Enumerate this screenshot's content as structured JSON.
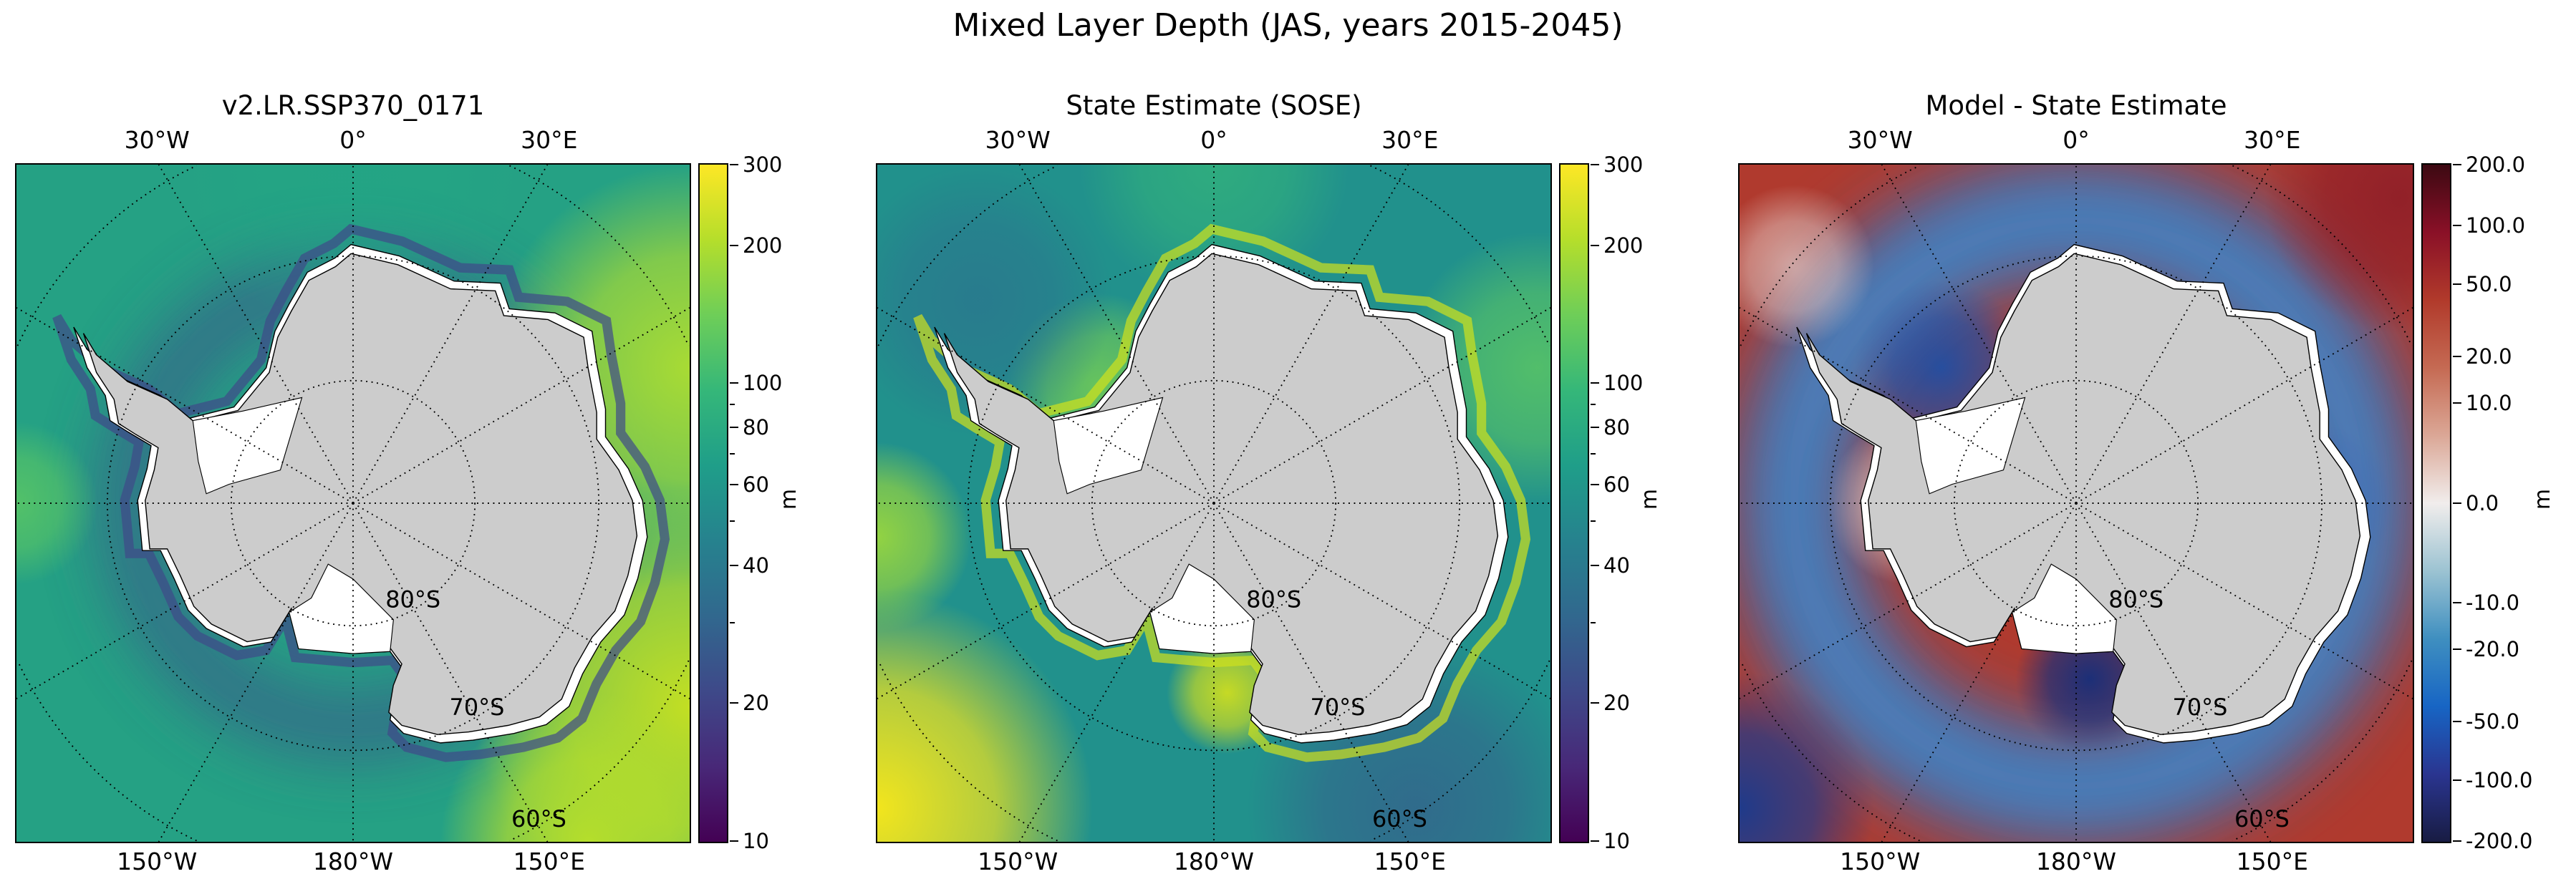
{
  "figure": {
    "suptitle": "Mixed Layer Depth (JAS, years 2015-2045)"
  },
  "chart_data": [
    {
      "type": "heatmap",
      "title": "v2.LR.SSP370_0171",
      "projection": "south polar stereographic",
      "lon_labels_top": [
        "30°W",
        "0°",
        "30°E"
      ],
      "lon_labels_bottom": [
        "150°W",
        "180°W",
        "150°E"
      ],
      "lat_labels": [
        "80°S",
        "70°S",
        "60°S"
      ],
      "colorbar": {
        "label": "m",
        "cmap": "viridis",
        "scale": "log",
        "range": [
          10,
          300
        ],
        "tick_labels": [
          "300",
          "200",
          "100",
          "80",
          "60",
          "40",
          "20",
          "10"
        ],
        "tick_values": [
          300,
          200,
          100,
          80,
          60,
          40,
          20,
          10
        ],
        "minor_ticks": [
          90,
          70,
          50,
          30
        ]
      }
    },
    {
      "type": "heatmap",
      "title": "State Estimate (SOSE)",
      "projection": "south polar stereographic",
      "lon_labels_top": [
        "30°W",
        "0°",
        "30°E"
      ],
      "lon_labels_bottom": [
        "150°W",
        "180°W",
        "150°E"
      ],
      "lat_labels": [
        "80°S",
        "70°S",
        "60°S"
      ],
      "colorbar": {
        "label": "m",
        "cmap": "viridis",
        "scale": "log",
        "range": [
          10,
          300
        ],
        "tick_labels": [
          "300",
          "200",
          "100",
          "80",
          "60",
          "40",
          "20",
          "10"
        ],
        "tick_values": [
          300,
          200,
          100,
          80,
          60,
          40,
          20,
          10
        ],
        "minor_ticks": [
          90,
          70,
          50,
          30
        ]
      }
    },
    {
      "type": "heatmap",
      "title": "Model - State Estimate",
      "projection": "south polar stereographic",
      "lon_labels_top": [
        "30°W",
        "0°",
        "30°E"
      ],
      "lon_labels_bottom": [
        "150°W",
        "180°W",
        "150°E"
      ],
      "lat_labels": [
        "80°S",
        "70°S",
        "60°S"
      ],
      "colorbar": {
        "label": "m",
        "cmap": "balance",
        "scale": "symlog",
        "range": [
          -200,
          200
        ],
        "tick_labels": [
          "200.0",
          "100.0",
          "50.0",
          "20.0",
          "10.0",
          "0.0",
          "-10.0",
          "-20.0",
          "-50.0",
          "-100.0",
          "-200.0"
        ],
        "tick_values": [
          200,
          100,
          50,
          20,
          10,
          0,
          -10,
          -20,
          -50,
          -100,
          -200
        ],
        "minor_ticks": []
      }
    }
  ],
  "colors": {
    "land": "#cccccc",
    "ice_shelf": "#ffffff",
    "graticule": "#000000"
  }
}
